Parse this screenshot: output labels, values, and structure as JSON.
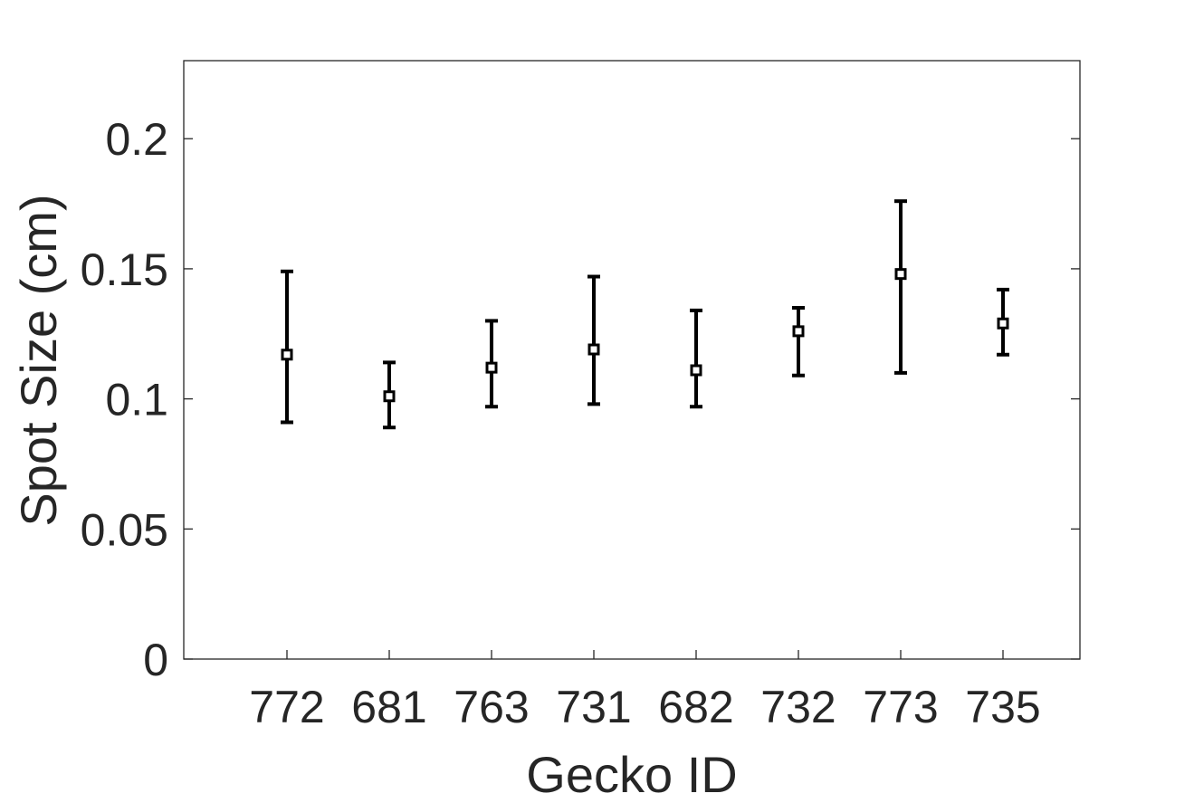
{
  "chart_data": {
    "type": "scatter",
    "subtype": "errorbar",
    "title": "",
    "xlabel": "Gecko ID",
    "ylabel": "Spot Size (cm)",
    "categories": [
      "772",
      "681",
      "763",
      "731",
      "682",
      "732",
      "773",
      "735"
    ],
    "values": [
      0.117,
      0.101,
      0.112,
      0.119,
      0.111,
      0.126,
      0.148,
      0.129
    ],
    "error_low": [
      0.091,
      0.089,
      0.097,
      0.098,
      0.097,
      0.109,
      0.11,
      0.117
    ],
    "error_high": [
      0.149,
      0.114,
      0.13,
      0.147,
      0.134,
      0.135,
      0.176,
      0.142
    ],
    "ylim": [
      0,
      0.23
    ],
    "yticks": [
      "0",
      "0.05",
      "0.1",
      "0.15",
      "0.2"
    ],
    "ytick_values": [
      0,
      0.05,
      0.1,
      0.15,
      0.2
    ],
    "grid": false,
    "legend": "none",
    "colors": {
      "marker": "#000000",
      "axis": "#262626",
      "background": "#ffffff"
    }
  }
}
